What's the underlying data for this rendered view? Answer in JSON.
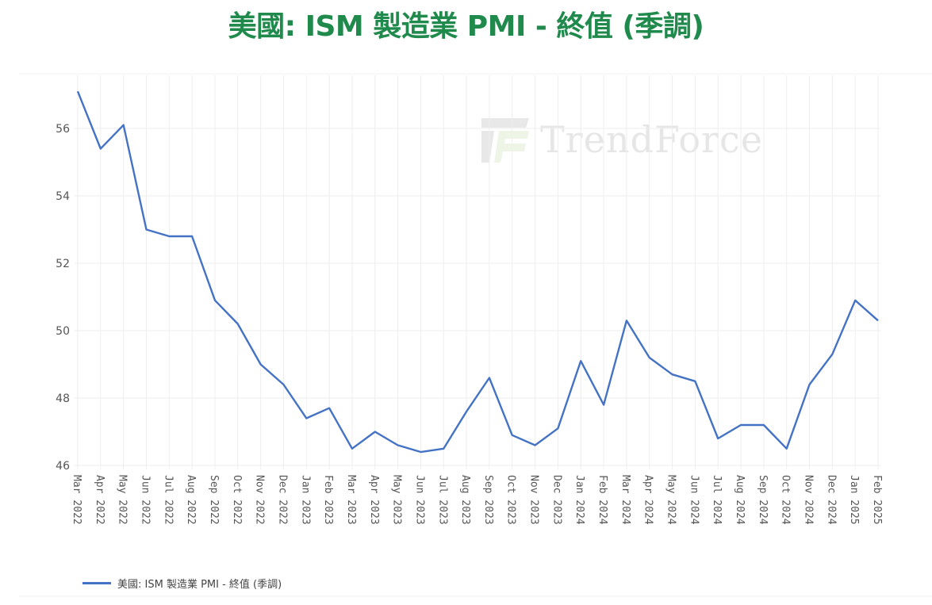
{
  "title": "美國: ISM 製造業 PMI - 終值 (季調)",
  "watermark": {
    "text": "TrendForce",
    "icon": "trendforce-logo-icon"
  },
  "legend": {
    "label": "美國: ISM 製造業 PMI - 終值 (季調)",
    "color": "#4472c4"
  },
  "colors": {
    "title": "#1f8a4c",
    "line": "#4472c4",
    "grid": "#eeeeee"
  },
  "chart_data": {
    "type": "line",
    "title": "美國: ISM 製造業 PMI - 終值 (季調)",
    "xlabel": "",
    "ylabel": "",
    "ylim": [
      46,
      57.2
    ],
    "yticks": [
      46,
      48,
      50,
      52,
      54,
      56
    ],
    "grid": true,
    "legend_position": "bottom-left",
    "x": [
      "Mar 2022",
      "Apr 2022",
      "May 2022",
      "Jun 2022",
      "Jul 2022",
      "Aug 2022",
      "Sep 2022",
      "Oct 2022",
      "Nov 2022",
      "Dec 2022",
      "Jan 2023",
      "Feb 2023",
      "Mar 2023",
      "Apr 2023",
      "May 2023",
      "Jun 2023",
      "Jul 2023",
      "Aug 2023",
      "Sep 2023",
      "Oct 2023",
      "Nov 2023",
      "Dec 2023",
      "Jan 2024",
      "Feb 2024",
      "Mar 2024",
      "Apr 2024",
      "May 2024",
      "Jun 2024",
      "Jul 2024",
      "Aug 2024",
      "Sep 2024",
      "Oct 2024",
      "Nov 2024",
      "Dec 2024",
      "Jan 2025",
      "Feb 2025"
    ],
    "series": [
      {
        "name": "美國: ISM 製造業 PMI - 終值 (季調)",
        "color": "#4472c4",
        "values": [
          57.1,
          55.4,
          56.1,
          53.0,
          52.8,
          52.8,
          50.9,
          50.2,
          49.0,
          48.4,
          47.4,
          47.7,
          46.5,
          47.0,
          46.6,
          46.4,
          46.5,
          47.6,
          48.6,
          46.9,
          46.6,
          47.1,
          49.1,
          47.8,
          50.3,
          49.2,
          48.7,
          48.5,
          46.8,
          47.2,
          47.2,
          46.5,
          48.4,
          49.3,
          50.9,
          50.3
        ]
      }
    ]
  }
}
